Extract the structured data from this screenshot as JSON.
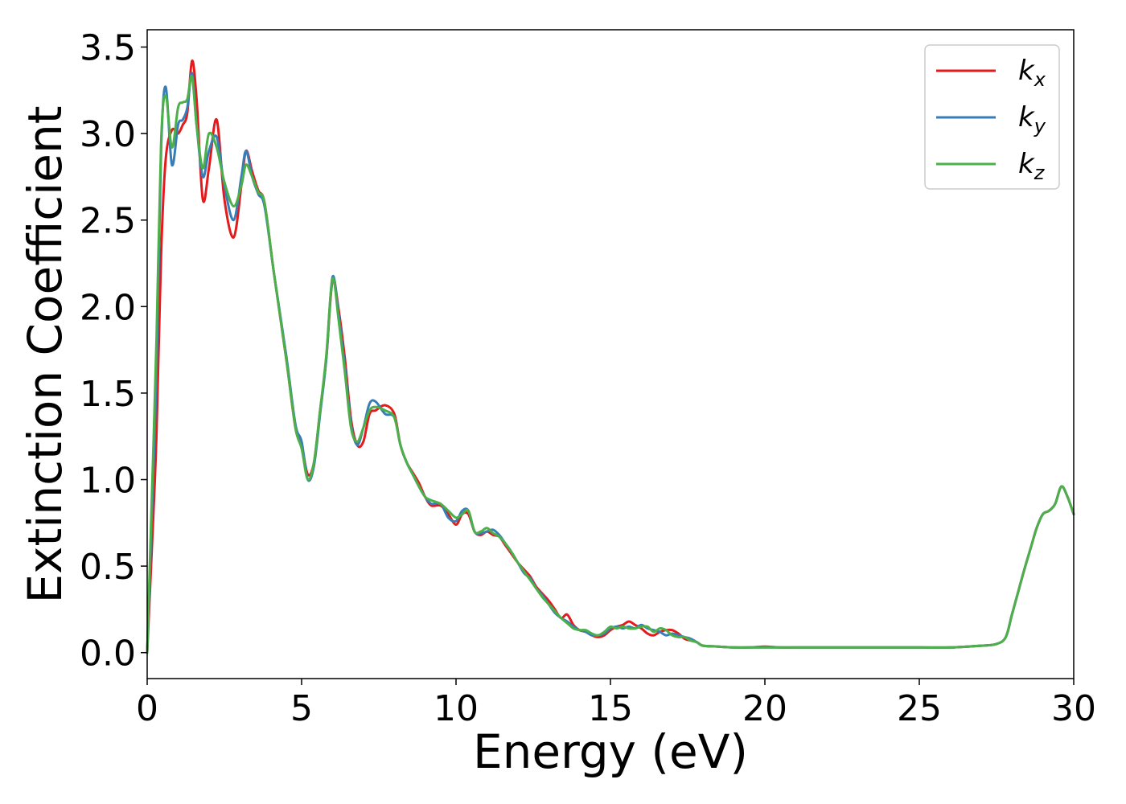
{
  "chart_data": {
    "type": "line",
    "title": "",
    "xlabel": "Energy (eV)",
    "ylabel": "Extinction Coefficient",
    "xlim": [
      0,
      30
    ],
    "ylim": [
      -0.15,
      3.6
    ],
    "xticks": [
      0,
      5,
      10,
      15,
      20,
      25,
      30
    ],
    "yticks": [
      0.0,
      0.5,
      1.0,
      1.5,
      2.0,
      2.5,
      3.0,
      3.5
    ],
    "xtick_labels": [
      "0",
      "5",
      "10",
      "15",
      "20",
      "25",
      "30"
    ],
    "ytick_labels": [
      "0.0",
      "0.5",
      "1.0",
      "1.5",
      "2.0",
      "2.5",
      "3.0",
      "3.5"
    ],
    "grid": false,
    "legend_position": "top-right",
    "series": [
      {
        "name": "k",
        "subscript": "x",
        "color": "#e41a1c",
        "x": [
          0,
          0.15,
          0.3,
          0.45,
          0.6,
          0.8,
          1.0,
          1.15,
          1.3,
          1.45,
          1.6,
          1.8,
          2.0,
          2.25,
          2.5,
          2.8,
          3.05,
          3.2,
          3.4,
          3.6,
          3.8,
          4.1,
          4.5,
          4.8,
          5.0,
          5.2,
          5.4,
          5.6,
          5.8,
          6.0,
          6.2,
          6.4,
          6.6,
          6.8,
          7.0,
          7.2,
          7.4,
          7.7,
          8.0,
          8.2,
          8.4,
          8.6,
          8.8,
          9.0,
          9.2,
          9.5,
          9.75,
          10.0,
          10.2,
          10.4,
          10.6,
          10.8,
          11.0,
          11.2,
          11.4,
          11.6,
          11.8,
          12.0,
          12.2,
          12.4,
          12.6,
          12.8,
          13.0,
          13.2,
          13.4,
          13.6,
          13.8,
          14.0,
          14.2,
          14.4,
          14.6,
          14.8,
          15.0,
          15.2,
          15.4,
          15.6,
          15.8,
          16.0,
          16.2,
          16.4,
          16.6,
          16.8,
          17.0,
          17.2,
          17.4,
          17.6,
          17.8,
          18.0,
          18.5,
          19.0,
          19.5,
          20.0,
          20.5,
          21.0,
          22.0,
          23.0,
          23.5,
          24.0,
          25.0,
          26.0,
          27.0,
          27.5,
          27.8,
          28.0,
          28.2,
          28.4,
          28.6,
          28.8,
          29.0,
          29.2,
          29.4,
          29.6,
          29.8,
          30.0
        ],
        "values": [
          0.0,
          0.6,
          1.25,
          2.3,
          2.85,
          3.02,
          3.0,
          3.05,
          3.12,
          3.42,
          3.2,
          2.62,
          2.8,
          3.08,
          2.62,
          2.4,
          2.7,
          2.9,
          2.78,
          2.67,
          2.6,
          2.2,
          1.7,
          1.3,
          1.2,
          1.03,
          1.1,
          1.4,
          1.7,
          2.15,
          1.98,
          1.7,
          1.35,
          1.2,
          1.22,
          1.38,
          1.4,
          1.43,
          1.38,
          1.2,
          1.1,
          1.04,
          0.98,
          0.9,
          0.85,
          0.85,
          0.8,
          0.74,
          0.8,
          0.8,
          0.7,
          0.68,
          0.7,
          0.68,
          0.67,
          0.62,
          0.57,
          0.52,
          0.48,
          0.44,
          0.38,
          0.34,
          0.3,
          0.25,
          0.2,
          0.22,
          0.16,
          0.13,
          0.12,
          0.1,
          0.09,
          0.1,
          0.13,
          0.15,
          0.16,
          0.18,
          0.16,
          0.14,
          0.11,
          0.1,
          0.12,
          0.13,
          0.13,
          0.11,
          0.08,
          0.07,
          0.06,
          0.04,
          0.035,
          0.03,
          0.03,
          0.035,
          0.03,
          0.03,
          0.03,
          0.03,
          0.03,
          0.03,
          0.03,
          0.03,
          0.04,
          0.05,
          0.09,
          0.22,
          0.35,
          0.48,
          0.6,
          0.72,
          0.8,
          0.82,
          0.86,
          0.96,
          0.9,
          0.8
        ]
      },
      {
        "name": "k",
        "subscript": "y",
        "color": "#377eb8",
        "x": [
          0,
          0.15,
          0.3,
          0.45,
          0.6,
          0.8,
          1.0,
          1.15,
          1.3,
          1.45,
          1.6,
          1.8,
          2.0,
          2.25,
          2.5,
          2.8,
          3.05,
          3.2,
          3.4,
          3.6,
          3.8,
          4.1,
          4.5,
          4.8,
          5.0,
          5.2,
          5.4,
          5.6,
          5.8,
          6.0,
          6.2,
          6.4,
          6.6,
          6.8,
          7.0,
          7.2,
          7.4,
          7.7,
          8.0,
          8.2,
          8.4,
          8.6,
          8.8,
          9.0,
          9.2,
          9.5,
          9.75,
          10.0,
          10.2,
          10.4,
          10.6,
          10.8,
          11.0,
          11.2,
          11.4,
          11.6,
          11.8,
          12.0,
          12.2,
          12.4,
          12.6,
          12.8,
          13.0,
          13.2,
          13.4,
          13.6,
          13.8,
          14.0,
          14.2,
          14.4,
          14.6,
          14.8,
          15.0,
          15.2,
          15.4,
          15.6,
          15.8,
          16.0,
          16.2,
          16.4,
          16.6,
          16.8,
          17.0,
          17.2,
          17.4,
          17.6,
          17.8,
          18.0,
          18.5,
          19.0,
          19.5,
          20.0,
          20.5,
          21.0,
          22.0,
          23.0,
          23.5,
          24.0,
          25.0,
          26.0,
          27.0,
          27.5,
          27.8,
          28.0,
          28.2,
          28.4,
          28.6,
          28.8,
          29.0,
          29.2,
          29.4,
          29.6,
          29.8,
          30.0
        ],
        "values": [
          0.0,
          0.8,
          1.6,
          2.9,
          3.27,
          2.82,
          3.05,
          3.08,
          3.15,
          3.35,
          3.05,
          2.75,
          2.9,
          2.98,
          2.7,
          2.5,
          2.75,
          2.9,
          2.75,
          2.65,
          2.58,
          2.2,
          1.72,
          1.32,
          1.22,
          1.0,
          1.08,
          1.38,
          1.7,
          2.17,
          1.95,
          1.65,
          1.32,
          1.2,
          1.3,
          1.44,
          1.45,
          1.38,
          1.36,
          1.2,
          1.1,
          1.03,
          0.96,
          0.9,
          0.86,
          0.86,
          0.78,
          0.76,
          0.82,
          0.82,
          0.7,
          0.69,
          0.7,
          0.71,
          0.68,
          0.63,
          0.58,
          0.52,
          0.46,
          0.43,
          0.37,
          0.33,
          0.28,
          0.23,
          0.2,
          0.18,
          0.15,
          0.13,
          0.12,
          0.1,
          0.1,
          0.11,
          0.14,
          0.15,
          0.14,
          0.15,
          0.14,
          0.16,
          0.14,
          0.13,
          0.12,
          0.1,
          0.11,
          0.1,
          0.09,
          0.08,
          0.06,
          0.04,
          0.035,
          0.03,
          0.03,
          0.03,
          0.03,
          0.03,
          0.03,
          0.03,
          0.03,
          0.03,
          0.03,
          0.03,
          0.04,
          0.05,
          0.09,
          0.22,
          0.35,
          0.48,
          0.6,
          0.72,
          0.8,
          0.82,
          0.86,
          0.96,
          0.9,
          0.8
        ]
      },
      {
        "name": "k",
        "subscript": "z",
        "color": "#4daf4a",
        "x": [
          0,
          0.15,
          0.3,
          0.45,
          0.6,
          0.8,
          1.0,
          1.15,
          1.3,
          1.45,
          1.6,
          1.8,
          2.0,
          2.25,
          2.5,
          2.8,
          3.05,
          3.2,
          3.4,
          3.6,
          3.8,
          4.1,
          4.5,
          4.8,
          5.0,
          5.2,
          5.4,
          5.6,
          5.8,
          6.0,
          6.2,
          6.4,
          6.6,
          6.8,
          7.0,
          7.2,
          7.4,
          7.7,
          8.0,
          8.2,
          8.4,
          8.6,
          8.8,
          9.0,
          9.2,
          9.5,
          9.75,
          10.0,
          10.2,
          10.4,
          10.6,
          10.8,
          11.0,
          11.2,
          11.4,
          11.6,
          11.8,
          12.0,
          12.2,
          12.4,
          12.6,
          12.8,
          13.0,
          13.2,
          13.4,
          13.6,
          13.8,
          14.0,
          14.2,
          14.4,
          14.6,
          14.8,
          15.0,
          15.2,
          15.4,
          15.6,
          15.8,
          16.0,
          16.2,
          16.4,
          16.6,
          16.8,
          17.0,
          17.2,
          17.4,
          17.6,
          17.8,
          18.0,
          18.5,
          19.0,
          19.5,
          20.0,
          20.5,
          21.0,
          22.0,
          23.0,
          23.5,
          24.0,
          25.0,
          26.0,
          27.0,
          27.5,
          27.8,
          28.0,
          28.2,
          28.4,
          28.6,
          28.8,
          29.0,
          29.2,
          29.4,
          29.6,
          29.8,
          30.0
        ],
        "values": [
          0.0,
          0.9,
          1.8,
          2.95,
          3.22,
          2.92,
          3.15,
          3.18,
          3.2,
          3.33,
          3.05,
          2.8,
          3.0,
          2.92,
          2.72,
          2.58,
          2.7,
          2.82,
          2.75,
          2.66,
          2.6,
          2.2,
          1.7,
          1.3,
          1.18,
          1.0,
          1.1,
          1.4,
          1.72,
          2.16,
          1.92,
          1.62,
          1.3,
          1.22,
          1.3,
          1.4,
          1.42,
          1.4,
          1.36,
          1.2,
          1.1,
          1.03,
          0.96,
          0.9,
          0.88,
          0.86,
          0.82,
          0.78,
          0.8,
          0.82,
          0.7,
          0.7,
          0.72,
          0.69,
          0.67,
          0.63,
          0.58,
          0.52,
          0.47,
          0.42,
          0.37,
          0.32,
          0.28,
          0.24,
          0.2,
          0.17,
          0.14,
          0.13,
          0.13,
          0.11,
          0.1,
          0.12,
          0.15,
          0.14,
          0.15,
          0.14,
          0.14,
          0.15,
          0.15,
          0.12,
          0.14,
          0.13,
          0.1,
          0.09,
          0.09,
          0.07,
          0.06,
          0.04,
          0.035,
          0.03,
          0.03,
          0.03,
          0.03,
          0.03,
          0.03,
          0.03,
          0.03,
          0.03,
          0.03,
          0.03,
          0.04,
          0.05,
          0.09,
          0.22,
          0.35,
          0.48,
          0.6,
          0.72,
          0.8,
          0.82,
          0.86,
          0.96,
          0.9,
          0.8
        ]
      }
    ]
  }
}
